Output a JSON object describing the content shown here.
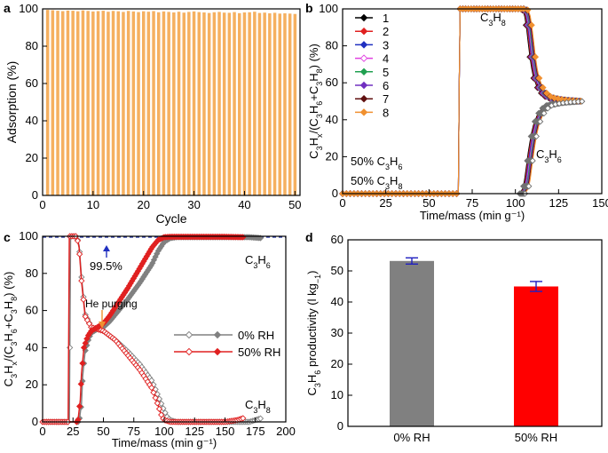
{
  "panels": {
    "a": "a",
    "b": "b",
    "c": "c",
    "d": "d"
  },
  "chart_data": [
    {
      "id": "a",
      "type": "bar",
      "title": "",
      "xlabel": "Cycle",
      "ylabel": "Adsorption (%)",
      "xlim": [
        0,
        51
      ],
      "ylim": [
        0,
        100
      ],
      "xticks": [
        "0",
        "10",
        "20",
        "30",
        "40",
        "50"
      ],
      "yticks": [
        "0",
        "20",
        "40",
        "60",
        "80",
        "100"
      ],
      "bar_color": "#f5b060",
      "cycles": [
        1,
        2,
        3,
        4,
        5,
        6,
        7,
        8,
        9,
        10,
        11,
        12,
        13,
        14,
        15,
        16,
        17,
        18,
        19,
        20,
        21,
        22,
        23,
        24,
        25,
        26,
        27,
        28,
        29,
        30,
        31,
        32,
        33,
        34,
        35,
        36,
        37,
        38,
        39,
        40,
        41,
        42,
        43,
        44,
        45,
        46,
        47,
        48,
        49,
        50
      ],
      "values": [
        99.5,
        99.3,
        99.0,
        98.8,
        99.1,
        99.0,
        98.7,
        99.2,
        98.9,
        98.6,
        98.8,
        99.0,
        98.5,
        98.9,
        98.7,
        98.4,
        98.9,
        98.6,
        98.3,
        98.7,
        98.5,
        98.8,
        98.2,
        98.6,
        98.4,
        98.1,
        98.5,
        98.0,
        98.4,
        98.6,
        98.3,
        98.1,
        97.8,
        98.2,
        98.4,
        98.0,
        97.9,
        98.3,
        97.7,
        98.1,
        98.2,
        98.5,
        97.8,
        98.0,
        97.6,
        97.9,
        97.5,
        97.6,
        97.5,
        97.3
      ]
    },
    {
      "id": "b",
      "type": "line",
      "xlabel": "Time/mass (min g⁻¹)",
      "ylabel_parts": [
        "C",
        "3",
        "H",
        "x",
        "/(C",
        "3",
        "H",
        "6",
        "+C",
        "3",
        "H",
        "8",
        ") (%)"
      ],
      "xlim": [
        0,
        150
      ],
      "ylim": [
        0,
        100
      ],
      "xticks": [
        "0",
        "25",
        "50",
        "75",
        "100",
        "125",
        "150"
      ],
      "yticks": [
        "0",
        "20",
        "40",
        "60",
        "80",
        "100"
      ],
      "legend": [
        "1",
        "2",
        "3",
        "4",
        "5",
        "6",
        "7",
        "8"
      ],
      "legend_position": "top-left",
      "series_colors": [
        "#000000",
        "#e02020",
        "#2030c0",
        "#e040e0",
        "#20a050",
        "#7030c0",
        "#601010",
        "#f09030"
      ],
      "c3h8_curve": {
        "x": [
          0,
          66,
          67,
          67.5,
          68,
          105,
          106,
          107,
          108,
          109,
          110,
          111,
          112,
          114,
          116,
          118,
          120,
          125,
          130,
          138
        ],
        "y": [
          0,
          0,
          0,
          60,
          100,
          100,
          99,
          96,
          90,
          82,
          74,
          68,
          63,
          58,
          55,
          53,
          52,
          51,
          50.5,
          50
        ]
      },
      "c3h6_curve": {
        "x": [
          0,
          104,
          106,
          107,
          108,
          109,
          110,
          111,
          112,
          114,
          116,
          118,
          120,
          125,
          130,
          138
        ],
        "y": [
          0,
          0,
          3,
          8,
          15,
          22,
          28,
          33,
          37,
          42,
          45,
          47,
          48,
          49,
          49.5,
          50
        ]
      },
      "annotations": {
        "c3h8": [
          "C",
          "3",
          "H",
          "8"
        ],
        "c3h6": [
          "C",
          "3",
          "H",
          "6"
        ],
        "feed1": [
          "50% C",
          "3",
          "H",
          "6"
        ],
        "feed2": [
          "50% C",
          "3",
          "H",
          "8"
        ]
      }
    },
    {
      "id": "c",
      "type": "line",
      "xlabel": "Time/mass (min g⁻¹)",
      "ylabel_parts": [
        "C",
        "3",
        "H",
        "x",
        "/(C",
        "3",
        "H",
        "6",
        "+C",
        "3",
        "H",
        "8",
        ") (%)"
      ],
      "xlim": [
        0,
        200
      ],
      "ylim": [
        0,
        100
      ],
      "xticks": [
        "0",
        "25",
        "50",
        "75",
        "100",
        "125",
        "150",
        "175",
        "200"
      ],
      "yticks": [
        "0",
        "20",
        "40",
        "60",
        "80",
        "100"
      ],
      "reference_line": 99.5,
      "reference_label": "99.5%",
      "he_label": "He purging",
      "series": [
        {
          "name": "0% RH",
          "color": "#808080",
          "c3h8": {
            "x": [
              0,
              22,
              23,
              25,
              28,
              30,
              32,
              35,
              40,
              45,
              50,
              60,
              70,
              80,
              90,
              95,
              100,
              103,
              105,
              110,
              150,
              160,
              170,
              175,
              180
            ],
            "y": [
              0,
              0,
              100,
              100,
              100,
              95,
              78,
              58,
              51,
              50,
              49,
              44,
              38,
              31,
              22,
              14,
              6,
              2,
              1,
              0,
              0,
              0,
              0,
              1,
              2
            ]
          },
          "c3h6": {
            "x": [
              0,
              30,
              32,
              33,
              35,
              38,
              40,
              45,
              50,
              55,
              60,
              70,
              80,
              90,
              95,
              100,
              105,
              110,
              150,
              170,
              180
            ],
            "y": [
              0,
              0,
              10,
              25,
              38,
              45,
              48,
              50,
              51,
              54,
              58,
              66,
              75,
              85,
              92,
              97,
              99,
              99.5,
              99.5,
              99.5,
              99
            ]
          }
        },
        {
          "name": "50% RH",
          "color": "#e02020",
          "c3h8": {
            "x": [
              0,
              21,
              22,
              25,
              28,
              30,
              32,
              35,
              40,
              45,
              50,
              60,
              70,
              80,
              90,
              95,
              98,
              100,
              105,
              150,
              160,
              165
            ],
            "y": [
              0,
              0,
              100,
              100,
              100,
              94,
              76,
              57,
              51,
              50,
              49,
              44,
              36,
              28,
              18,
              9,
              3,
              1,
              0,
              0,
              1,
              2
            ]
          },
          "c3h6": {
            "x": [
              0,
              29,
              31,
              32,
              34,
              37,
              40,
              45,
              50,
              55,
              60,
              70,
              80,
              90,
              95,
              100,
              105,
              150,
              165
            ],
            "y": [
              0,
              0,
              12,
              26,
              40,
              46,
              49,
              51,
              53,
              57,
              62,
              72,
              83,
              94,
              98,
              99.5,
              99.7,
              99.7,
              99.5
            ]
          }
        }
      ],
      "annotations": {
        "c3h6": [
          "C",
          "3",
          "H",
          "6"
        ],
        "c3h8": [
          "C",
          "3",
          "H",
          "8"
        ]
      }
    },
    {
      "id": "d",
      "type": "bar",
      "ylabel_parts": [
        "C",
        "3",
        "H",
        "6",
        " productivity (l kg",
        "−1",
        ")"
      ],
      "categories": [
        "0% RH",
        "50% RH"
      ],
      "values": [
        53.2,
        45.0
      ],
      "errors": [
        1.0,
        1.6
      ],
      "colors": [
        "#808080",
        "#ff0000"
      ],
      "error_color": "#2020c0",
      "ylim": [
        0,
        60
      ],
      "yticks": [
        "0",
        "10",
        "20",
        "30",
        "40",
        "50",
        "60"
      ]
    }
  ]
}
